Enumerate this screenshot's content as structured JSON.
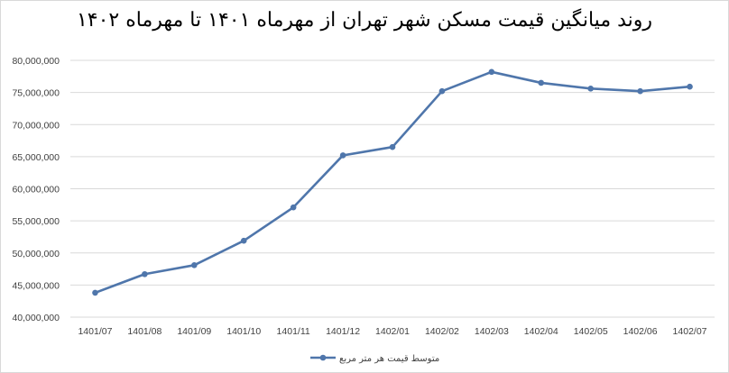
{
  "chart_data": {
    "type": "line",
    "title": "روند میانگین قیمت مسکن شهر تهران از مهرماه ۱۴۰۱ تا مهرماه ۱۴۰۲",
    "xlabel": "",
    "ylabel": "",
    "categories": [
      "1401/07",
      "1401/08",
      "1401/09",
      "1401/10",
      "1401/11",
      "1401/12",
      "1402/01",
      "1402/02",
      "1402/03",
      "1402/04",
      "1402/05",
      "1402/06",
      "1402/07"
    ],
    "series": [
      {
        "name": "متوسط قیمت هر متر مربع",
        "values": [
          43800000,
          46700000,
          48100000,
          51900000,
          57100000,
          65200000,
          66500000,
          75200000,
          78200000,
          76500000,
          75600000,
          75200000,
          75900000
        ]
      }
    ],
    "ylim": [
      40000000,
      80000000
    ],
    "yticks": [
      "40,000,000",
      "45,000,000",
      "50,000,000",
      "55,000,000",
      "60,000,000",
      "65,000,000",
      "70,000,000",
      "75,000,000",
      "80,000,000"
    ],
    "grid": "horizontal",
    "legend": "bottom",
    "line_color": "#4f76ab"
  }
}
